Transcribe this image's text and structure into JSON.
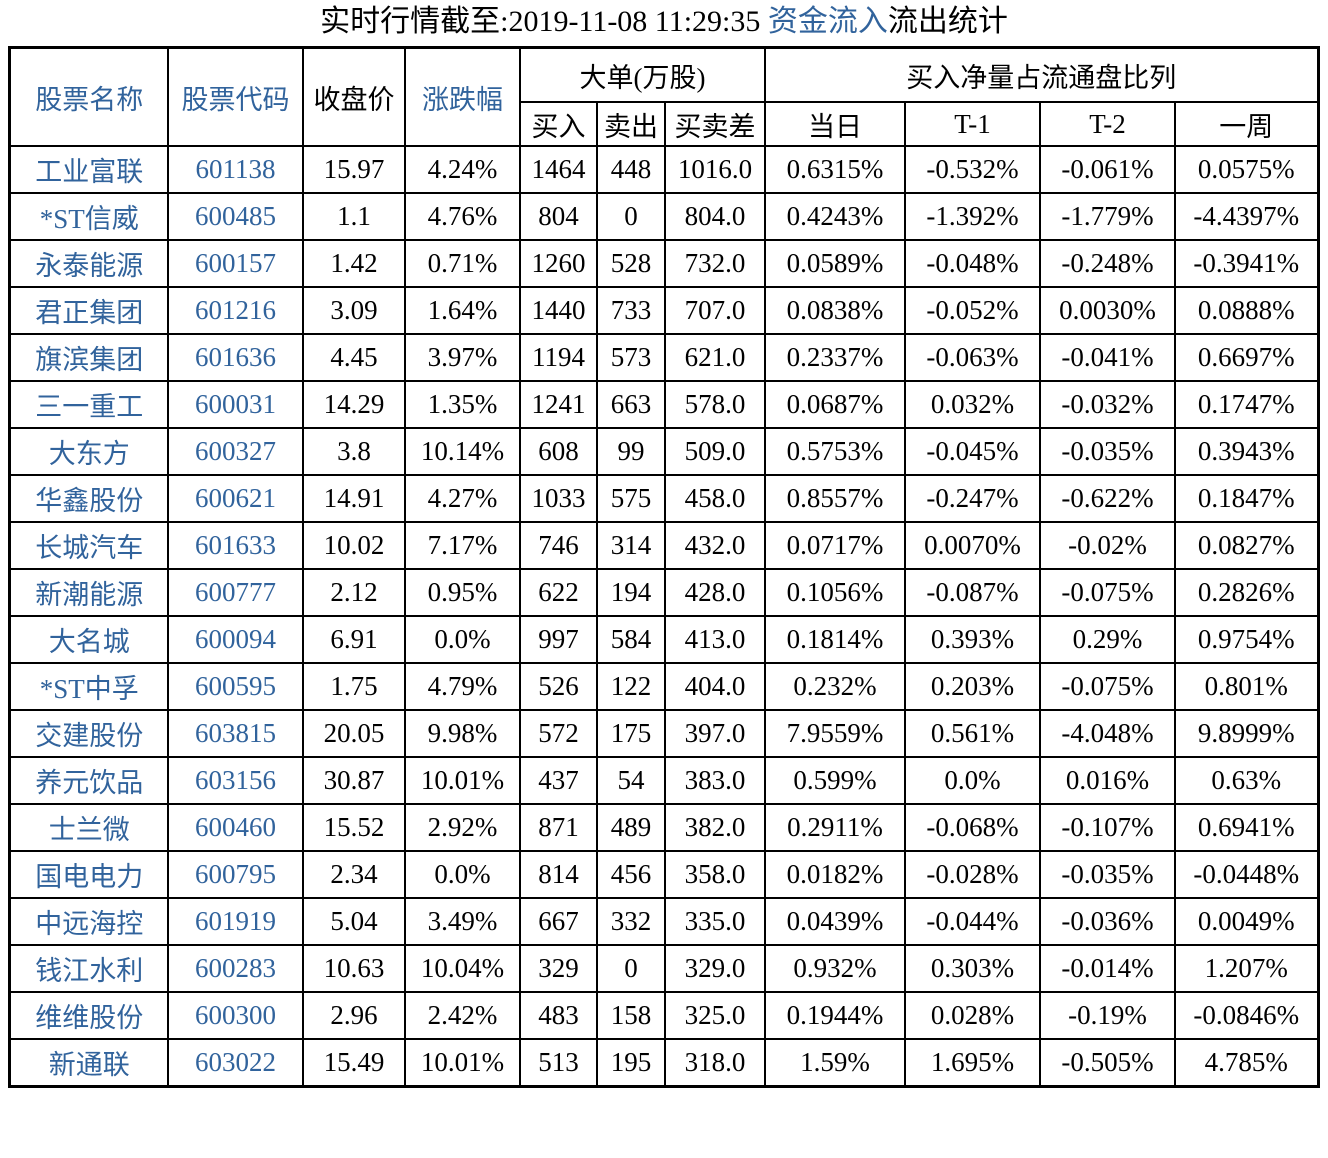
{
  "title": {
    "prefix": "实时行情截至:2019-11-08 11:29:35 ",
    "highlight": "资金流入",
    "suffix": "流出统计"
  },
  "colors": {
    "link_blue": "#31639C",
    "text_black": "#000000",
    "border_black": "#000000",
    "background": "#FFFFFF"
  },
  "chart_data": {
    "type": "table",
    "title": "实时行情截至:2019-11-08 11:29:35 资金流入流出统计",
    "header_groups": {
      "large_orders": "大单(万股)",
      "net_buy_ratio": "买入净量占流通盘比列"
    },
    "columns": [
      "股票名称",
      "股票代码",
      "收盘价",
      "涨跌幅",
      "买入",
      "卖出",
      "买卖差",
      "当日",
      "T-1",
      "T-2",
      "一周"
    ],
    "rows": [
      [
        "工业富联",
        "601138",
        "15.97",
        "4.24%",
        "1464",
        "448",
        "1016.0",
        "0.6315%",
        "-0.532%",
        "-0.061%",
        "0.0575%"
      ],
      [
        "*ST信威",
        "600485",
        "1.1",
        "4.76%",
        "804",
        "0",
        "804.0",
        "0.4243%",
        "-1.392%",
        "-1.779%",
        "-4.4397%"
      ],
      [
        "永泰能源",
        "600157",
        "1.42",
        "0.71%",
        "1260",
        "528",
        "732.0",
        "0.0589%",
        "-0.048%",
        "-0.248%",
        "-0.3941%"
      ],
      [
        "君正集团",
        "601216",
        "3.09",
        "1.64%",
        "1440",
        "733",
        "707.0",
        "0.0838%",
        "-0.052%",
        "0.0030%",
        "0.0888%"
      ],
      [
        "旗滨集团",
        "601636",
        "4.45",
        "3.97%",
        "1194",
        "573",
        "621.0",
        "0.2337%",
        "-0.063%",
        "-0.041%",
        "0.6697%"
      ],
      [
        "三一重工",
        "600031",
        "14.29",
        "1.35%",
        "1241",
        "663",
        "578.0",
        "0.0687%",
        "0.032%",
        "-0.032%",
        "0.1747%"
      ],
      [
        "大东方",
        "600327",
        "3.8",
        "10.14%",
        "608",
        "99",
        "509.0",
        "0.5753%",
        "-0.045%",
        "-0.035%",
        "0.3943%"
      ],
      [
        "华鑫股份",
        "600621",
        "14.91",
        "4.27%",
        "1033",
        "575",
        "458.0",
        "0.8557%",
        "-0.247%",
        "-0.622%",
        "0.1847%"
      ],
      [
        "长城汽车",
        "601633",
        "10.02",
        "7.17%",
        "746",
        "314",
        "432.0",
        "0.0717%",
        "0.0070%",
        "-0.02%",
        "0.0827%"
      ],
      [
        "新潮能源",
        "600777",
        "2.12",
        "0.95%",
        "622",
        "194",
        "428.0",
        "0.1056%",
        "-0.087%",
        "-0.075%",
        "0.2826%"
      ],
      [
        "大名城",
        "600094",
        "6.91",
        "0.0%",
        "997",
        "584",
        "413.0",
        "0.1814%",
        "0.393%",
        "0.29%",
        "0.9754%"
      ],
      [
        "*ST中孚",
        "600595",
        "1.75",
        "4.79%",
        "526",
        "122",
        "404.0",
        "0.232%",
        "0.203%",
        "-0.075%",
        "0.801%"
      ],
      [
        "交建股份",
        "603815",
        "20.05",
        "9.98%",
        "572",
        "175",
        "397.0",
        "7.9559%",
        "0.561%",
        "-4.048%",
        "9.8999%"
      ],
      [
        "养元饮品",
        "603156",
        "30.87",
        "10.01%",
        "437",
        "54",
        "383.0",
        "0.599%",
        "0.0%",
        "0.016%",
        "0.63%"
      ],
      [
        "士兰微",
        "600460",
        "15.52",
        "2.92%",
        "871",
        "489",
        "382.0",
        "0.2911%",
        "-0.068%",
        "-0.107%",
        "0.6941%"
      ],
      [
        "国电电力",
        "600795",
        "2.34",
        "0.0%",
        "814",
        "456",
        "358.0",
        "0.0182%",
        "-0.028%",
        "-0.035%",
        "-0.0448%"
      ],
      [
        "中远海控",
        "601919",
        "5.04",
        "3.49%",
        "667",
        "332",
        "335.0",
        "0.0439%",
        "-0.044%",
        "-0.036%",
        "0.0049%"
      ],
      [
        "钱江水利",
        "600283",
        "10.63",
        "10.04%",
        "329",
        "0",
        "329.0",
        "0.932%",
        "0.303%",
        "-0.014%",
        "1.207%"
      ],
      [
        "维维股份",
        "600300",
        "2.96",
        "2.42%",
        "483",
        "158",
        "325.0",
        "0.1944%",
        "0.028%",
        "-0.19%",
        "-0.0846%"
      ],
      [
        "新通联",
        "603022",
        "15.49",
        "10.01%",
        "513",
        "195",
        "318.0",
        "1.59%",
        "1.695%",
        "-0.505%",
        "4.785%"
      ]
    ]
  }
}
